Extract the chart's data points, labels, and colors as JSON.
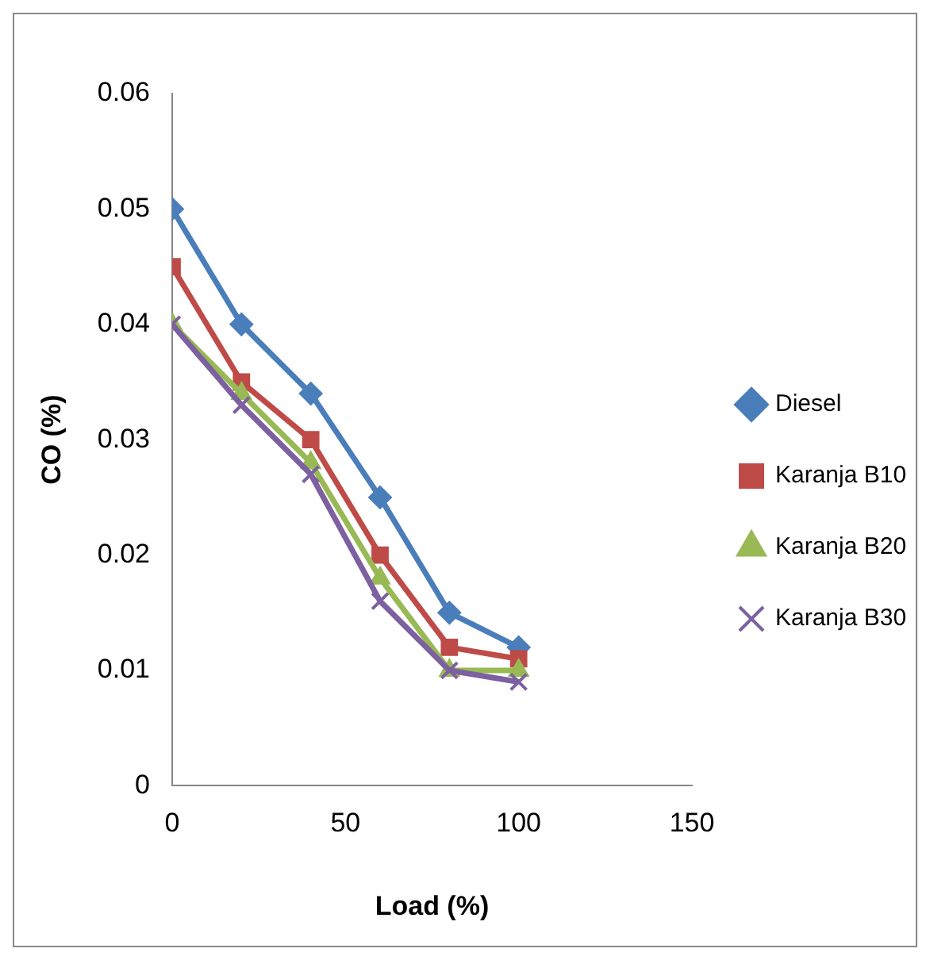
{
  "chart_data": {
    "type": "line",
    "xlabel": "Load (%)",
    "ylabel": "CO (%)",
    "x": [
      0,
      20,
      40,
      60,
      80,
      100
    ],
    "xlim": [
      0,
      150
    ],
    "xticks": [
      0,
      50,
      100,
      150
    ],
    "ylim": [
      0,
      0.06
    ],
    "yticks": [
      0,
      0.01,
      0.02,
      0.03,
      0.04,
      0.05,
      0.06
    ],
    "grid": false,
    "legend": "right",
    "line_style": "solid",
    "series": [
      {
        "name": "Diesel",
        "color": "#4a7ebb",
        "marker": "diamond",
        "values": [
          0.05,
          0.04,
          0.034,
          0.025,
          0.015,
          0.012
        ]
      },
      {
        "name": "Karanja B10",
        "color": "#be4b48",
        "marker": "square",
        "values": [
          0.045,
          0.035,
          0.03,
          0.02,
          0.012,
          0.011
        ]
      },
      {
        "name": "Karanja B20",
        "color": "#98b954",
        "marker": "triangle",
        "values": [
          0.04,
          0.034,
          0.028,
          0.018,
          0.01,
          0.01
        ]
      },
      {
        "name": "Karanja B30",
        "color": "#7d60a0",
        "marker": "cross",
        "values": [
          0.04,
          0.033,
          0.027,
          0.016,
          0.01,
          0.009
        ]
      }
    ]
  }
}
